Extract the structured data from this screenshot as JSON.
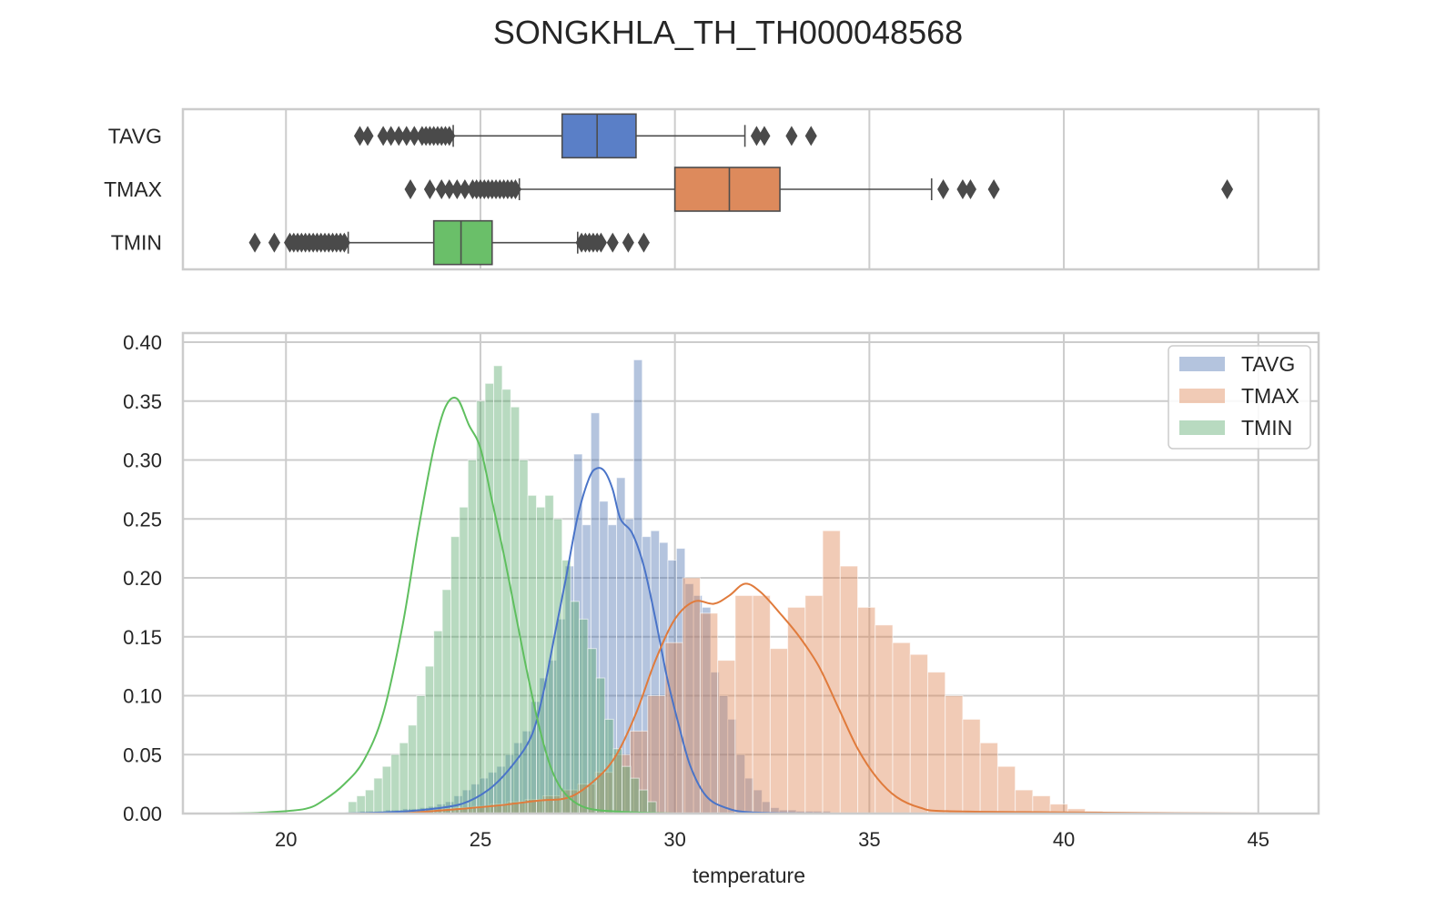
{
  "title": "SONGKHLA_TH_TH000048568",
  "colors": {
    "TAVG": "#4c72b0",
    "TMAX": "#dd8452",
    "TMIN": "#55a868",
    "TAVG_box": "#5a7fc7",
    "TMAX_box": "#dd8a5c",
    "TMIN_box": "#6abf69",
    "TAVG_kde": "#4a74c8",
    "TMAX_kde": "#e07b3c",
    "TMIN_kde": "#5fbf5f",
    "grid": "#cccccc",
    "frame": "#cccccc",
    "outlier": "#4a4a4a"
  },
  "chart_data": [
    {
      "type": "box",
      "categories": [
        "TAVG",
        "TMAX",
        "TMIN"
      ],
      "xlim": [
        17.35,
        46.55
      ],
      "grid": true,
      "boxes": [
        {
          "name": "TAVG",
          "whisker_low": 24.3,
          "q1": 27.1,
          "median": 28.0,
          "q3": 29.0,
          "whisker_high": 31.8,
          "outliers": [
            21.9,
            22.1,
            22.5,
            22.7,
            22.9,
            23.1,
            23.3,
            23.5,
            23.6,
            23.7,
            23.8,
            23.9,
            24.0,
            24.1,
            24.2,
            32.1,
            32.3,
            33.0,
            33.5
          ]
        },
        {
          "name": "TMAX",
          "whisker_low": 26.0,
          "q1": 30.0,
          "median": 31.4,
          "q3": 32.7,
          "whisker_high": 36.6,
          "outliers": [
            23.2,
            23.7,
            24.0,
            24.2,
            24.4,
            24.6,
            24.8,
            24.9,
            25.0,
            25.1,
            25.2,
            25.3,
            25.4,
            25.5,
            25.6,
            25.7,
            25.8,
            25.9,
            36.9,
            37.4,
            37.6,
            38.2,
            44.2
          ]
        },
        {
          "name": "TMIN",
          "whisker_low": 21.6,
          "q1": 23.8,
          "median": 24.5,
          "q3": 25.3,
          "whisker_high": 27.5,
          "outliers": [
            19.2,
            19.7,
            20.1,
            20.2,
            20.3,
            20.4,
            20.5,
            20.6,
            20.7,
            20.8,
            20.9,
            21.0,
            21.1,
            21.2,
            21.3,
            21.4,
            21.5,
            27.6,
            27.7,
            27.8,
            27.9,
            28.0,
            28.1,
            28.4,
            28.8,
            29.2
          ]
        }
      ]
    },
    {
      "type": "histogram",
      "xlabel": "temperature",
      "ylabel": "",
      "xlim": [
        17.35,
        46.55
      ],
      "ylim": [
        0,
        0.4
      ],
      "xticks": [
        20,
        25,
        30,
        35,
        40,
        45
      ],
      "yticks": [
        0.0,
        0.05,
        0.1,
        0.15,
        0.2,
        0.25,
        0.3,
        0.35,
        0.4
      ],
      "ytick_labels": [
        "0.00",
        "0.05",
        "0.10",
        "0.15",
        "0.20",
        "0.25",
        "0.30",
        "0.35",
        "0.40"
      ],
      "grid": true,
      "legend_position": "top-right",
      "series": [
        {
          "name": "TAVG",
          "bin_start": 21.9,
          "bin_width": 0.22,
          "values": [
            0.002,
            0.002,
            0.002,
            0.003,
            0.003,
            0.004,
            0.004,
            0.005,
            0.006,
            0.008,
            0.01,
            0.015,
            0.02,
            0.025,
            0.03,
            0.035,
            0.04,
            0.05,
            0.06,
            0.07,
            0.095,
            0.115,
            0.13,
            0.165,
            0.21,
            0.305,
            0.245,
            0.34,
            0.265,
            0.245,
            0.285,
            0.25,
            0.385,
            0.235,
            0.24,
            0.23,
            0.215,
            0.225,
            0.195,
            0.185,
            0.175,
            0.12,
            0.1,
            0.08,
            0.05,
            0.03,
            0.02,
            0.01,
            0.005,
            0.003,
            0.003,
            0.002,
            0.002,
            0.002,
            0.002
          ],
          "kde": [
            [
              21.5,
              0.0
            ],
            [
              22.5,
              0.001
            ],
            [
              23.5,
              0.003
            ],
            [
              24.5,
              0.008
            ],
            [
              25.2,
              0.02
            ],
            [
              25.8,
              0.04
            ],
            [
              26.3,
              0.065
            ],
            [
              26.6,
              0.1
            ],
            [
              26.9,
              0.15
            ],
            [
              27.2,
              0.2
            ],
            [
              27.5,
              0.252
            ],
            [
              27.8,
              0.285
            ],
            [
              28.0,
              0.293
            ],
            [
              28.2,
              0.29
            ],
            [
              28.4,
              0.275
            ],
            [
              28.6,
              0.25
            ],
            [
              28.9,
              0.238
            ],
            [
              29.2,
              0.21
            ],
            [
              29.5,
              0.165
            ],
            [
              29.8,
              0.115
            ],
            [
              30.1,
              0.075
            ],
            [
              30.4,
              0.04
            ],
            [
              30.8,
              0.015
            ],
            [
              31.3,
              0.005
            ],
            [
              32.0,
              0.001
            ],
            [
              34.0,
              0.0
            ]
          ]
        },
        {
          "name": "TMAX",
          "bin_start": 23.0,
          "bin_width": 0.45,
          "values": [
            0.002,
            0.003,
            0.004,
            0.005,
            0.006,
            0.008,
            0.01,
            0.012,
            0.015,
            0.02,
            0.025,
            0.035,
            0.05,
            0.07,
            0.1,
            0.145,
            0.2,
            0.17,
            0.13,
            0.185,
            0.185,
            0.14,
            0.175,
            0.185,
            0.24,
            0.21,
            0.175,
            0.16,
            0.145,
            0.135,
            0.12,
            0.1,
            0.08,
            0.06,
            0.04,
            0.02,
            0.015,
            0.008,
            0.004,
            0.002,
            0.001
          ],
          "kde": [
            [
              23.0,
              0.0
            ],
            [
              24.5,
              0.004
            ],
            [
              25.5,
              0.007
            ],
            [
              26.5,
              0.011
            ],
            [
              27.3,
              0.014
            ],
            [
              28.0,
              0.03
            ],
            [
              28.5,
              0.05
            ],
            [
              29.0,
              0.085
            ],
            [
              29.5,
              0.13
            ],
            [
              30.0,
              0.165
            ],
            [
              30.5,
              0.18
            ],
            [
              31.0,
              0.178
            ],
            [
              31.4,
              0.185
            ],
            [
              31.8,
              0.195
            ],
            [
              32.2,
              0.188
            ],
            [
              32.7,
              0.17
            ],
            [
              33.2,
              0.15
            ],
            [
              33.7,
              0.125
            ],
            [
              34.2,
              0.09
            ],
            [
              34.7,
              0.055
            ],
            [
              35.2,
              0.03
            ],
            [
              35.7,
              0.014
            ],
            [
              36.3,
              0.005
            ],
            [
              37.0,
              0.002
            ],
            [
              40.0,
              0.001
            ],
            [
              45.0,
              0.0
            ]
          ]
        },
        {
          "name": "TMIN",
          "bin_start": 21.6,
          "bin_width": 0.22,
          "values": [
            0.01,
            0.015,
            0.02,
            0.03,
            0.04,
            0.05,
            0.06,
            0.075,
            0.1,
            0.125,
            0.155,
            0.19,
            0.235,
            0.26,
            0.3,
            0.35,
            0.365,
            0.38,
            0.36,
            0.345,
            0.3,
            0.27,
            0.26,
            0.27,
            0.25,
            0.215,
            0.18,
            0.165,
            0.14,
            0.115,
            0.08,
            0.055,
            0.04,
            0.03,
            0.02,
            0.01
          ],
          "kde": [
            [
              18.5,
              0.0
            ],
            [
              19.5,
              0.001
            ],
            [
              20.5,
              0.004
            ],
            [
              21.0,
              0.012
            ],
            [
              21.5,
              0.025
            ],
            [
              22.0,
              0.045
            ],
            [
              22.5,
              0.085
            ],
            [
              23.0,
              0.16
            ],
            [
              23.4,
              0.24
            ],
            [
              23.8,
              0.31
            ],
            [
              24.1,
              0.345
            ],
            [
              24.4,
              0.352
            ],
            [
              24.7,
              0.33
            ],
            [
              25.0,
              0.31
            ],
            [
              25.3,
              0.265
            ],
            [
              25.6,
              0.22
            ],
            [
              25.9,
              0.17
            ],
            [
              26.2,
              0.12
            ],
            [
              26.5,
              0.075
            ],
            [
              26.8,
              0.04
            ],
            [
              27.1,
              0.02
            ],
            [
              27.5,
              0.008
            ],
            [
              28.0,
              0.003
            ],
            [
              29.0,
              0.001
            ],
            [
              30.0,
              0.0
            ]
          ]
        }
      ]
    }
  ]
}
